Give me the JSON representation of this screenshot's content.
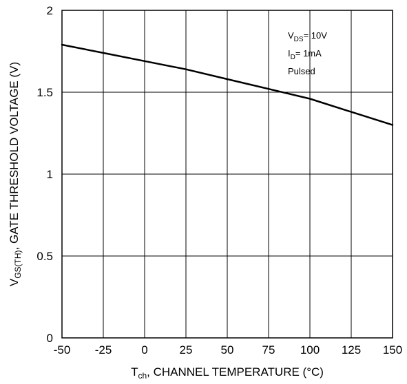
{
  "chart_data": {
    "type": "line",
    "xlabel": {
      "main": "T",
      "sub": "ch",
      "rest": ", CHANNEL TEMPERATURE (°C)"
    },
    "ylabel": {
      "main": "V",
      "sub": "GS(TH)",
      "rest": ", GATE THRESHOLD VOLTAGE (V)"
    },
    "xlim": [
      -50,
      150
    ],
    "ylim": [
      0,
      2
    ],
    "x_ticks": [
      "-50",
      "-25",
      "0",
      "25",
      "50",
      "75",
      "100",
      "125",
      "150"
    ],
    "y_ticks": [
      "0",
      "0.5",
      "1",
      "1.5",
      "2"
    ],
    "grid": true,
    "annotations": [
      {
        "main": "V",
        "sub": "DS",
        "rest": "= 10V"
      },
      {
        "main": "I",
        "sub": "D",
        "rest": "= 1mA"
      },
      {
        "main": "Pulsed",
        "sub": "",
        "rest": ""
      }
    ],
    "series": [
      {
        "x": [
          -50,
          -25,
          0,
          25,
          50,
          75,
          100,
          125,
          150
        ],
        "y": [
          1.79,
          1.74,
          1.69,
          1.64,
          1.58,
          1.52,
          1.46,
          1.38,
          1.3
        ]
      }
    ]
  }
}
